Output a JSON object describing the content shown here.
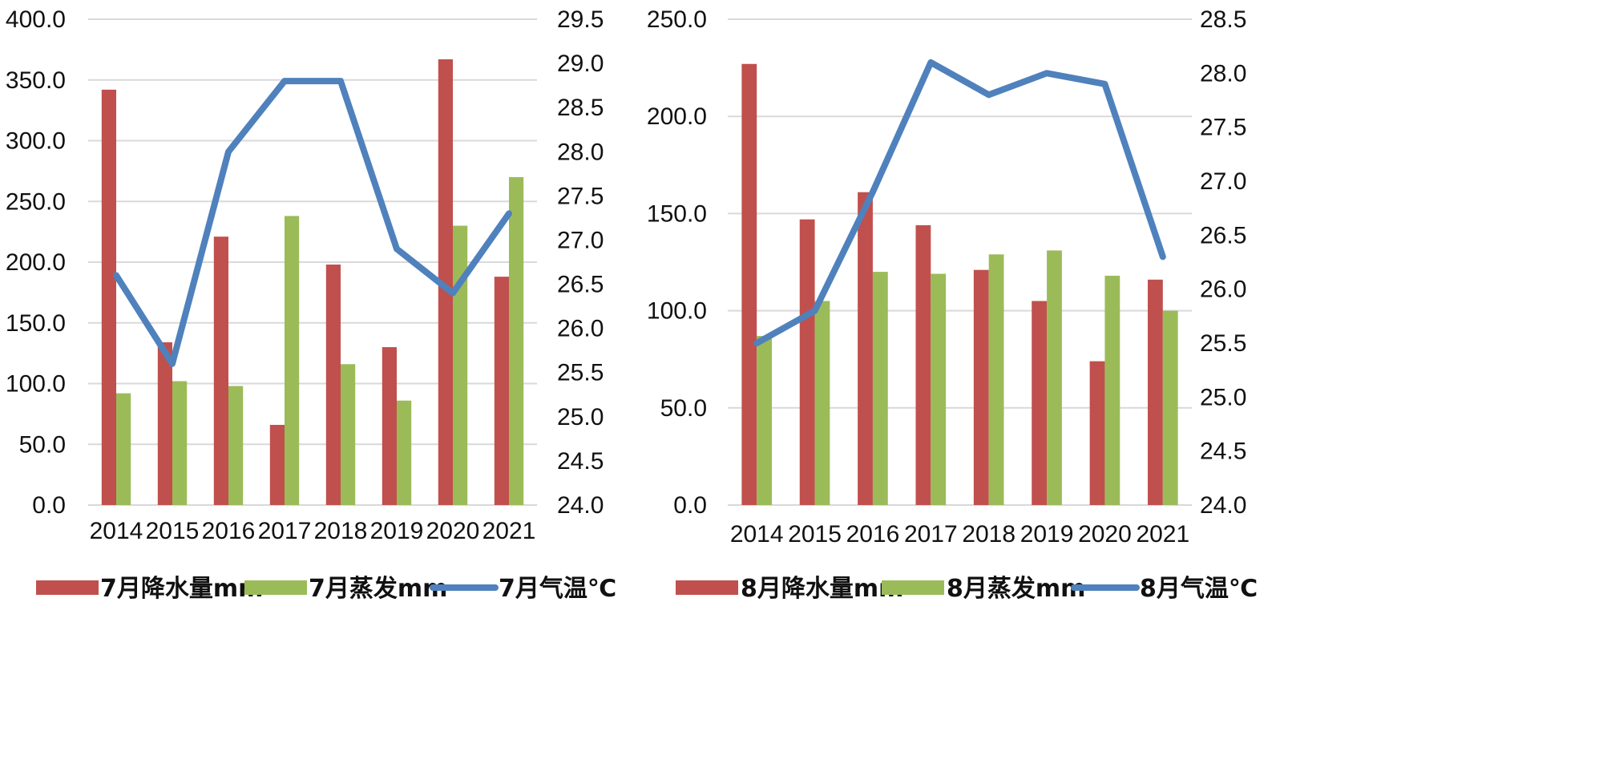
{
  "colors": {
    "rain": "#C0504D",
    "evap": "#9BBB59",
    "temp": "#4F81BD",
    "grid": "#D9D9D9"
  },
  "chart_data": [
    {
      "type": "bar",
      "categories": [
        "2014",
        "2015",
        "2016",
        "2017",
        "2018",
        "2019",
        "2020",
        "2021"
      ],
      "series": [
        {
          "name": "7月降水量mm",
          "axis": "left",
          "values": [
            342,
            134,
            221,
            66,
            198,
            130,
            367,
            188
          ]
        },
        {
          "name": "7月蒸发mm",
          "axis": "left",
          "values": [
            92,
            102,
            98,
            238,
            116,
            86,
            230,
            270
          ]
        },
        {
          "name": "7月气温℃",
          "type": "line",
          "axis": "right",
          "values": [
            26.6,
            25.6,
            28.0,
            28.8,
            28.8,
            26.9,
            26.4,
            27.3
          ]
        }
      ],
      "ylim_left": [
        0,
        400
      ],
      "yticks_left": [
        "0.0",
        "50.0",
        "100.0",
        "150.0",
        "200.0",
        "250.0",
        "300.0",
        "350.0",
        "400.0"
      ],
      "ylim_right": [
        24,
        29.5
      ],
      "yticks_right": [
        "24.0",
        "24.5",
        "25.0",
        "25.5",
        "26.0",
        "26.5",
        "27.0",
        "27.5",
        "28.0",
        "28.5",
        "29.0",
        "29.5"
      ],
      "grid": true,
      "legend": "bottom"
    },
    {
      "type": "bar",
      "categories": [
        "2014",
        "2015",
        "2016",
        "2017",
        "2018",
        "2019",
        "2020",
        "2021"
      ],
      "series": [
        {
          "name": "8月降水量mm",
          "axis": "left",
          "values": [
            227,
            147,
            161,
            144,
            121,
            105,
            74,
            116
          ]
        },
        {
          "name": "8月蒸发mm",
          "axis": "left",
          "values": [
            87,
            105,
            120,
            119,
            129,
            131,
            118,
            100
          ]
        },
        {
          "name": "8月气温℃",
          "type": "line",
          "axis": "right",
          "values": [
            25.5,
            25.8,
            26.9,
            28.1,
            27.8,
            28.0,
            27.9,
            26.3
          ]
        }
      ],
      "ylim_left": [
        0,
        250
      ],
      "yticks_left": [
        "0.0",
        "50.0",
        "100.0",
        "150.0",
        "200.0",
        "250.0"
      ],
      "ylim_right": [
        24,
        28.5
      ],
      "yticks_right": [
        "24.0",
        "24.5",
        "25.0",
        "25.5",
        "26.0",
        "26.5",
        "27.0",
        "27.5",
        "28.0",
        "28.5"
      ],
      "grid": true,
      "legend": "bottom"
    }
  ]
}
